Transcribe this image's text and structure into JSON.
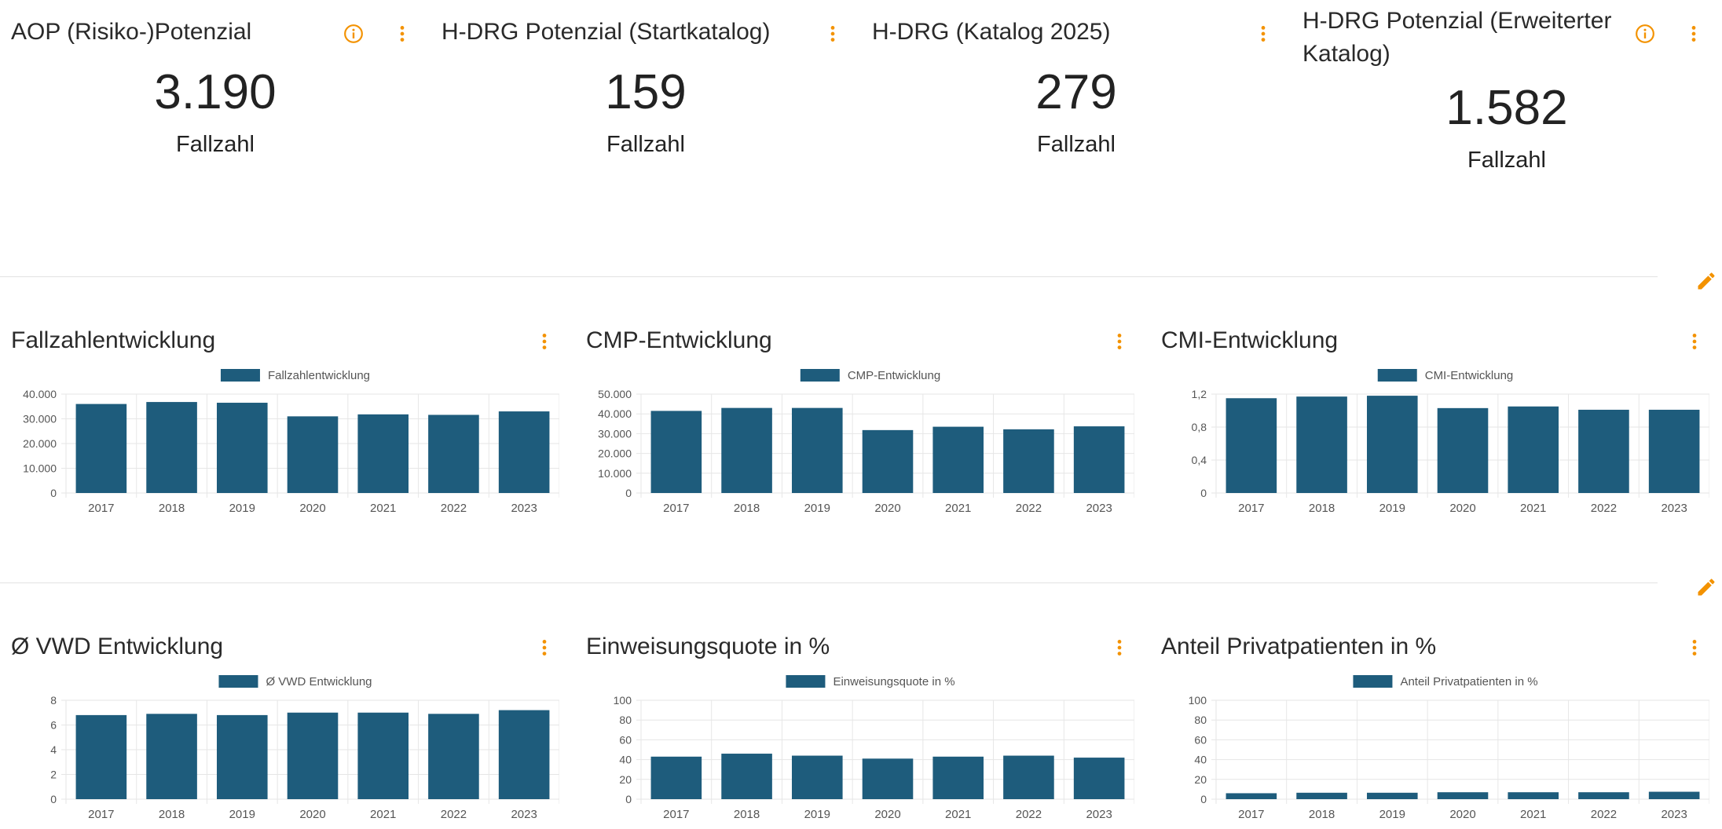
{
  "kpis": [
    {
      "title": "AOP (Risiko-)Potenzial",
      "value": "3.190",
      "unit": "Fallzahl",
      "has_info": true
    },
    {
      "title": "H-DRG Potenzial (Startkatalog)",
      "value": "159",
      "unit": "Fallzahl",
      "has_info": false
    },
    {
      "title": "H-DRG (Katalog 2025)",
      "value": "279",
      "unit": "Fallzahl",
      "has_info": false
    },
    {
      "title": "H-DRG Potenzial (Erweiterter Katalog)",
      "value": "1.582",
      "unit": "Fallzahl",
      "has_info": true
    }
  ],
  "colors": {
    "bar": "#1e5c7c",
    "accent_orange": "#f39200",
    "grid": "#e6e6e6",
    "axis_text": "#555555"
  },
  "icons": {
    "info": "info-circle-icon",
    "menu": "more-vertical-icon",
    "edit": "pencil-icon"
  },
  "chart_data": [
    {
      "type": "bar",
      "title": "Fallzahlentwicklung",
      "categories": [
        "2017",
        "2018",
        "2019",
        "2020",
        "2021",
        "2022",
        "2023"
      ],
      "series": [
        {
          "name": "Fallzahlentwicklung",
          "values": [
            36000,
            36800,
            36500,
            31000,
            31800,
            31600,
            33000
          ]
        }
      ],
      "ylim": [
        0,
        40000
      ],
      "yticks": [
        0,
        10000,
        20000,
        30000,
        40000
      ],
      "ytick_labels": [
        "0",
        "10.000",
        "20.000",
        "30.000",
        "40.000"
      ],
      "legend": "top-center",
      "grid": true
    },
    {
      "type": "bar",
      "title": "CMP-Entwicklung",
      "categories": [
        "2017",
        "2018",
        "2019",
        "2020",
        "2021",
        "2022",
        "2023"
      ],
      "series": [
        {
          "name": "CMP-Entwicklung",
          "values": [
            41500,
            43000,
            43000,
            31800,
            33500,
            32200,
            33700
          ]
        }
      ],
      "ylim": [
        0,
        50000
      ],
      "yticks": [
        0,
        10000,
        20000,
        30000,
        40000,
        50000
      ],
      "ytick_labels": [
        "0",
        "10.000",
        "20.000",
        "30.000",
        "40.000",
        "50.000"
      ],
      "legend": "top-center",
      "grid": true
    },
    {
      "type": "bar",
      "title": "CMI-Entwicklung",
      "categories": [
        "2017",
        "2018",
        "2019",
        "2020",
        "2021",
        "2022",
        "2023"
      ],
      "series": [
        {
          "name": "CMI-Entwicklung",
          "values": [
            1.15,
            1.17,
            1.18,
            1.03,
            1.05,
            1.01,
            1.01
          ]
        }
      ],
      "ylim": [
        0,
        1.2
      ],
      "yticks": [
        0,
        0.4,
        0.8,
        1.2
      ],
      "ytick_labels": [
        "0",
        "0,4",
        "0,8",
        "1,2"
      ],
      "legend": "top-center",
      "grid": true
    },
    {
      "type": "bar",
      "title": "Ø VWD Entwicklung",
      "categories": [
        "2017",
        "2018",
        "2019",
        "2020",
        "2021",
        "2022",
        "2023"
      ],
      "series": [
        {
          "name": "Ø VWD Entwicklung",
          "values": [
            6.8,
            6.9,
            6.8,
            7.0,
            7.0,
            6.9,
            7.2
          ]
        }
      ],
      "ylim": [
        0,
        8
      ],
      "yticks": [
        0,
        2,
        4,
        6,
        8
      ],
      "ytick_labels": [
        "0",
        "2",
        "4",
        "6",
        "8"
      ],
      "legend": "top-center",
      "grid": true
    },
    {
      "type": "bar",
      "title": "Einweisungsquote in %",
      "categories": [
        "2017",
        "2018",
        "2019",
        "2020",
        "2021",
        "2022",
        "2023"
      ],
      "series": [
        {
          "name": "Einweisungsquote in %",
          "values": [
            43,
            46,
            44,
            41,
            43,
            44,
            42
          ]
        }
      ],
      "ylim": [
        0,
        100
      ],
      "yticks": [
        0,
        20,
        40,
        60,
        80,
        100
      ],
      "ytick_labels": [
        "0",
        "20",
        "40",
        "60",
        "80",
        "100"
      ],
      "legend": "top-center",
      "grid": true
    },
    {
      "type": "bar",
      "title": "Anteil Privatpatienten in %",
      "categories": [
        "2017",
        "2018",
        "2019",
        "2020",
        "2021",
        "2022",
        "2023"
      ],
      "series": [
        {
          "name": "Anteil Privatpatienten in %",
          "values": [
            6,
            6.5,
            6.5,
            7,
            7,
            7,
            7.5
          ]
        }
      ],
      "ylim": [
        0,
        100
      ],
      "yticks": [
        0,
        20,
        40,
        60,
        80,
        100
      ],
      "ytick_labels": [
        "0",
        "20",
        "40",
        "60",
        "80",
        "100"
      ],
      "legend": "top-center",
      "grid": true
    }
  ]
}
